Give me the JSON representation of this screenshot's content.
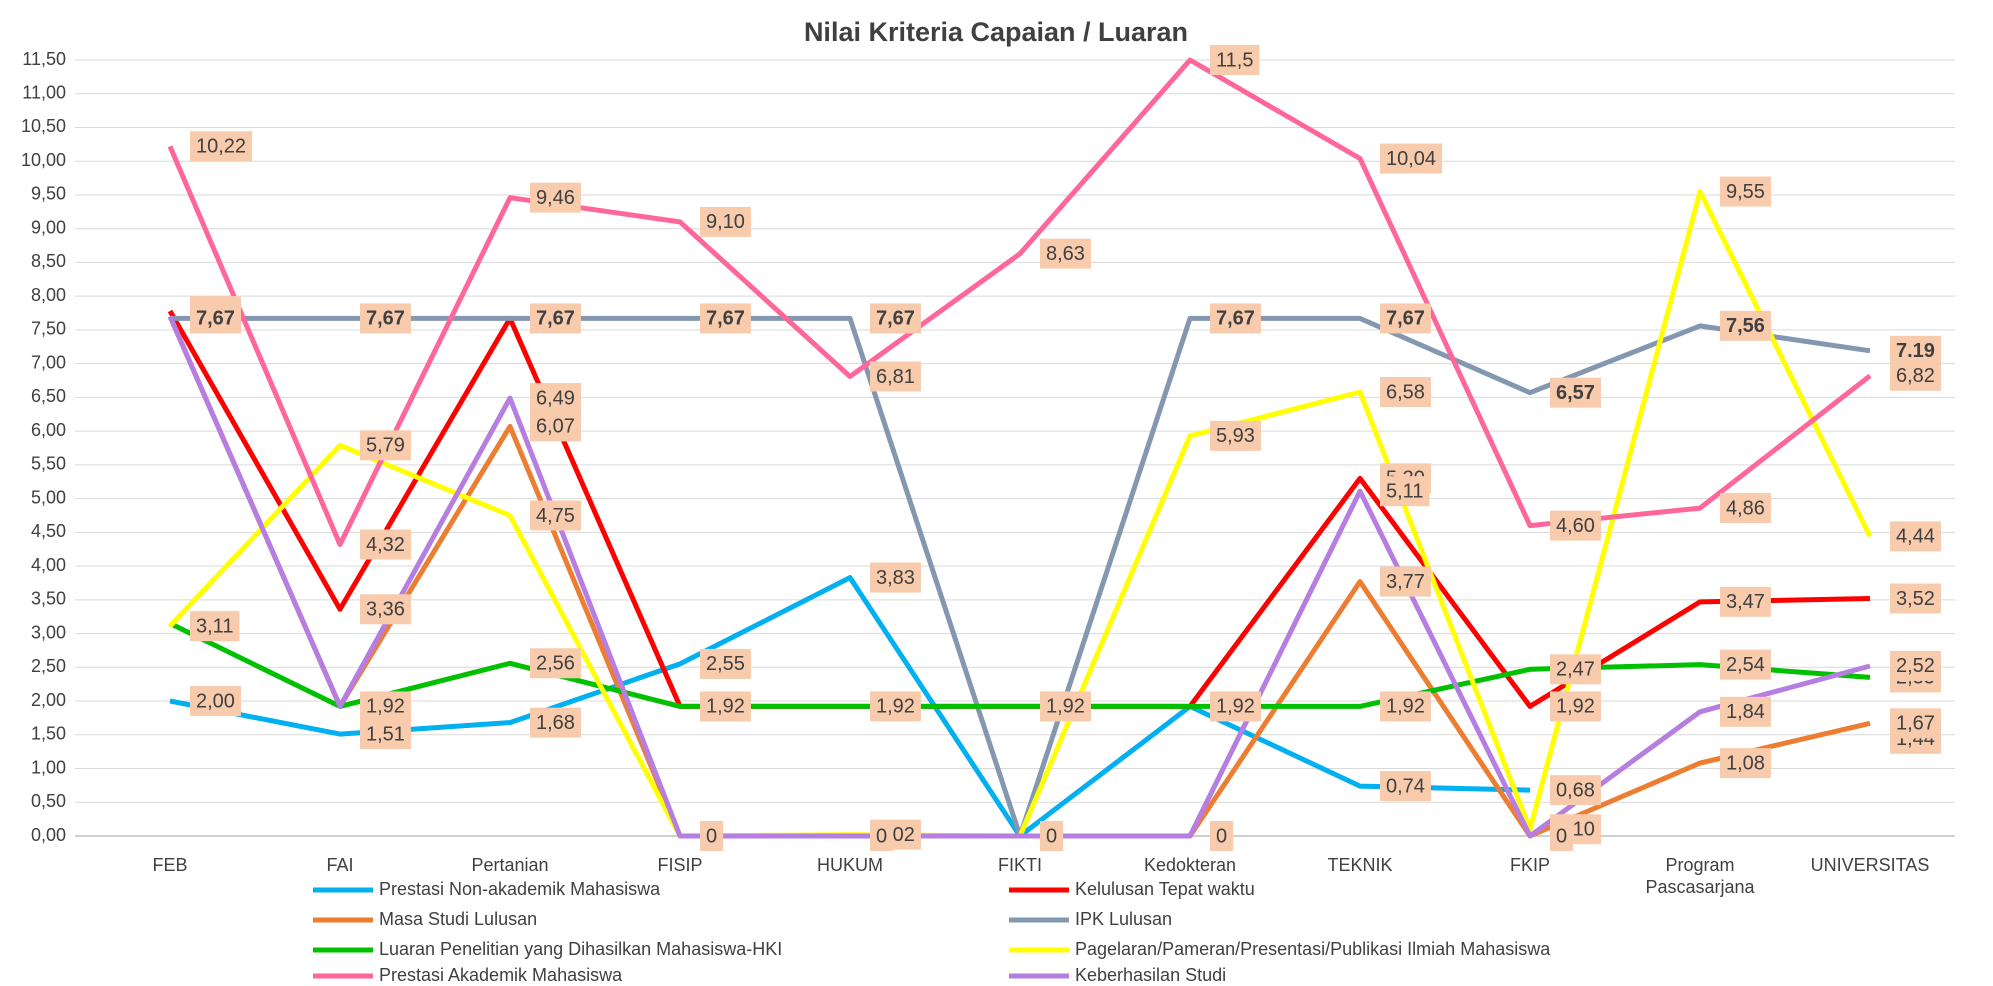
{
  "chart_data": {
    "type": "line",
    "title": "Nilai Kriteria Capaian / Luaran",
    "categories": [
      "FEB",
      "FAI",
      "Pertanian",
      "FISIP",
      "HUKUM",
      "FIKTI",
      "Kedokteran",
      "TEKNIK",
      "FKIP",
      "Program Pascasarjana",
      "UNIVERSITAS"
    ],
    "ylim": [
      0,
      11.5
    ],
    "yticks": [
      {
        "value": 0,
        "label": "0,00"
      },
      {
        "value": 0.5,
        "label": "0,50"
      },
      {
        "value": 1,
        "label": "1,00"
      },
      {
        "value": 1.5,
        "label": "1,50"
      },
      {
        "value": 2,
        "label": "2,00"
      },
      {
        "value": 2.5,
        "label": "2,50"
      },
      {
        "value": 3,
        "label": "3,00"
      },
      {
        "value": 3.5,
        "label": "3,50"
      },
      {
        "value": 4,
        "label": "4,00"
      },
      {
        "value": 4.5,
        "label": "4,50"
      },
      {
        "value": 5,
        "label": "5,00"
      },
      {
        "value": 5.5,
        "label": "5,50"
      },
      {
        "value": 6,
        "label": "6,00"
      },
      {
        "value": 6.5,
        "label": "6,50"
      },
      {
        "value": 7,
        "label": "7,00"
      },
      {
        "value": 7.5,
        "label": "7,50"
      },
      {
        "value": 8,
        "label": "8,00"
      },
      {
        "value": 8.5,
        "label": "8,50"
      },
      {
        "value": 9,
        "label": "9,00"
      },
      {
        "value": 9.5,
        "label": "9,50"
      },
      {
        "value": 10,
        "label": "10,00"
      },
      {
        "value": 10.5,
        "label": "10,50"
      },
      {
        "value": 11,
        "label": "11,00"
      },
      {
        "value": 11.5,
        "label": "11,50"
      }
    ],
    "grid": true,
    "series": [
      {
        "name": "Prestasi Non-akademik Mahasiswa",
        "color": "#00b0f0",
        "values": [
          2.0,
          1.51,
          1.68,
          2.55,
          3.83,
          0,
          1.92,
          0.74,
          0.68,
          null,
          1.44
        ],
        "value_labels": [
          "2,00",
          "1,51",
          "1,68",
          "2,55",
          "3,83",
          null,
          null,
          "0,74",
          "0,68",
          null,
          "1,44"
        ]
      },
      {
        "name": "Kelulusan Tepat waktu",
        "color": "#ff0000",
        "values": [
          7.78,
          3.36,
          7.67,
          1.92,
          1.92,
          1.92,
          1.92,
          5.3,
          1.92,
          3.47,
          3.52
        ],
        "value_labels": [
          "7,78",
          "3,36",
          null,
          null,
          null,
          null,
          null,
          "5,30",
          "1,92",
          "3,47",
          "3,52"
        ]
      },
      {
        "name": "Masa Studi Lulusan",
        "color": "#ed7d31",
        "values": [
          7.7,
          1.92,
          6.07,
          0,
          0,
          0,
          0,
          3.77,
          0,
          1.08,
          1.67
        ],
        "value_labels": [
          null,
          "1,92",
          "6,07",
          null,
          null,
          null,
          null,
          "3,77",
          null,
          "1,08",
          "1,67"
        ]
      },
      {
        "name": "IPK Lulusan",
        "color": "#8497b0",
        "values": [
          7.67,
          7.67,
          7.67,
          7.67,
          7.67,
          0,
          7.67,
          7.67,
          6.57,
          7.56,
          7.19
        ],
        "value_labels": [
          "7,67",
          "7,67",
          "7,67",
          "7,67",
          "7,67",
          null,
          "7,67",
          "7,67",
          "6,57",
          "7,56",
          "7.19"
        ]
      },
      {
        "name": "Luaran Penelitian yang Dihasilkan Mahasiswa-HKI",
        "color": "#00c000",
        "values": [
          3.15,
          1.92,
          2.56,
          1.92,
          1.92,
          1.92,
          1.92,
          1.92,
          2.47,
          2.54,
          2.35
        ],
        "value_labels": [
          null,
          null,
          "2,56",
          "1,92",
          "1,92",
          "1,92",
          "1,92",
          "1,92",
          "2,47",
          "2,54",
          "2,35"
        ]
      },
      {
        "name": "Pagelaran/Pameran/Presentasi/Publikasi Ilmiah Mahasiswa",
        "color": "#ffff00",
        "values": [
          3.11,
          5.79,
          4.75,
          0,
          0.02,
          0,
          5.93,
          6.58,
          0.1,
          9.55,
          4.44
        ],
        "value_labels": [
          "3,11",
          "5,79",
          "4,75",
          null,
          "0,02",
          null,
          "5,93",
          "6,58",
          "0,10",
          "9,55",
          "4,44"
        ]
      },
      {
        "name": "Prestasi Akademik Mahasiswa",
        "color": "#ff6699",
        "values": [
          10.22,
          4.32,
          9.46,
          9.1,
          6.81,
          8.63,
          11.5,
          10.04,
          4.6,
          4.86,
          6.82
        ],
        "value_labels": [
          "10,22",
          "4,32",
          "9,46",
          "9,10",
          "6,81",
          "8,63",
          "11,5",
          "10,04",
          "4,60",
          "4,86",
          "6,82"
        ]
      },
      {
        "name": "Keberhasilan Studi",
        "color": "#b57ee0",
        "values": [
          7.7,
          1.92,
          6.49,
          0,
          0,
          0,
          0,
          5.11,
          0,
          1.84,
          2.52
        ],
        "value_labels": [
          null,
          null,
          "6,49",
          "0",
          "0",
          "0",
          "0",
          "5,11",
          "0",
          "1,84",
          "2,52"
        ]
      }
    ]
  }
}
